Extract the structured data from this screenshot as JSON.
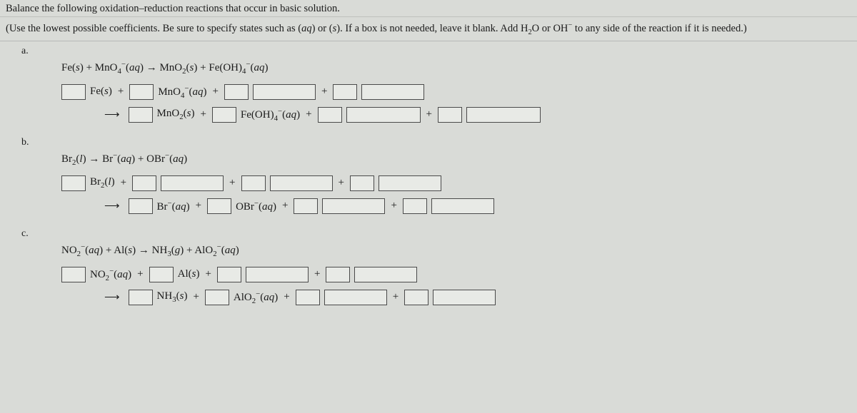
{
  "intro_line1": "Balance the following oxidation–reduction reactions that occur in basic solution.",
  "intro_line2_prefix": "(Use the lowest possible coefficients. Be sure to specify states such as (",
  "intro_line2_mid1": ") or (",
  "intro_line2_mid2": "). If a box is not needed, leave it blank. Add H",
  "intro_line2_mid3": "O or OH",
  "intro_line2_suffix": " to any side of the reaction if it is needed.)",
  "labels": {
    "a": "a.",
    "b": "b.",
    "c": "c."
  },
  "plus": "+",
  "arrow_long": "⟶",
  "arrow_rxn": "→",
  "italic_aq": "aq",
  "italic_s": "s",
  "italic_l": "l",
  "italic_g": "g",
  "sup_minus": "−",
  "a": {
    "Fe_s": "Fe(s)",
    "MnO4_aq": "MnO4⁻(aq)",
    "MnO2_s": "MnO2(s)",
    "FeOH4_aq": "Fe(OH)4⁻(aq)"
  },
  "b": {
    "Br2_l": "Br2(l)",
    "Br_aq": "Br⁻(aq)",
    "OBr_aq": "OBr⁻(aq)"
  },
  "c": {
    "NO2_aq": "NO2⁻(aq)",
    "Al_s": "Al(s)",
    "NH3_g": "NH3(g)",
    "NH3_s": "NH3(s)",
    "AlO2_aq": "AlO2⁻(aq)"
  }
}
